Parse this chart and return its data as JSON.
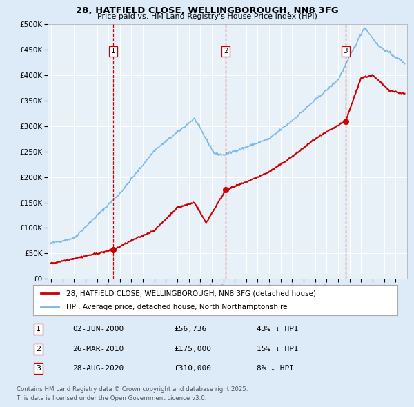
{
  "title1": "28, HATFIELD CLOSE, WELLINGBOROUGH, NN8 3FG",
  "title2": "Price paid vs. HM Land Registry's House Price Index (HPI)",
  "legend_red": "28, HATFIELD CLOSE, WELLINGBOROUGH, NN8 3FG (detached house)",
  "legend_blue": "HPI: Average price, detached house, North Northamptonshire",
  "footnote1": "Contains HM Land Registry data © Crown copyright and database right 2025.",
  "footnote2": "This data is licensed under the Open Government Licence v3.0.",
  "sales": [
    {
      "n": 1,
      "date": "02-JUN-2000",
      "price": "£56,736",
      "pct": "43% ↓ HPI",
      "year": 2000.42
    },
    {
      "n": 2,
      "date": "26-MAR-2010",
      "price": "£175,000",
      "pct": "15% ↓ HPI",
      "year": 2010.23
    },
    {
      "n": 3,
      "date": "28-AUG-2020",
      "price": "£310,000",
      "pct": "8% ↓ HPI",
      "year": 2020.66
    }
  ],
  "sale_prices": [
    56736,
    175000,
    310000
  ],
  "bg_color": "#ddeaf7",
  "plot_bg": "#e8f1f8",
  "red_color": "#cc0000",
  "blue_color": "#7ab8e8",
  "vline_color": "#cc0000",
  "ylim": [
    0,
    500000
  ],
  "xlim": [
    1994.7,
    2026.0
  ]
}
